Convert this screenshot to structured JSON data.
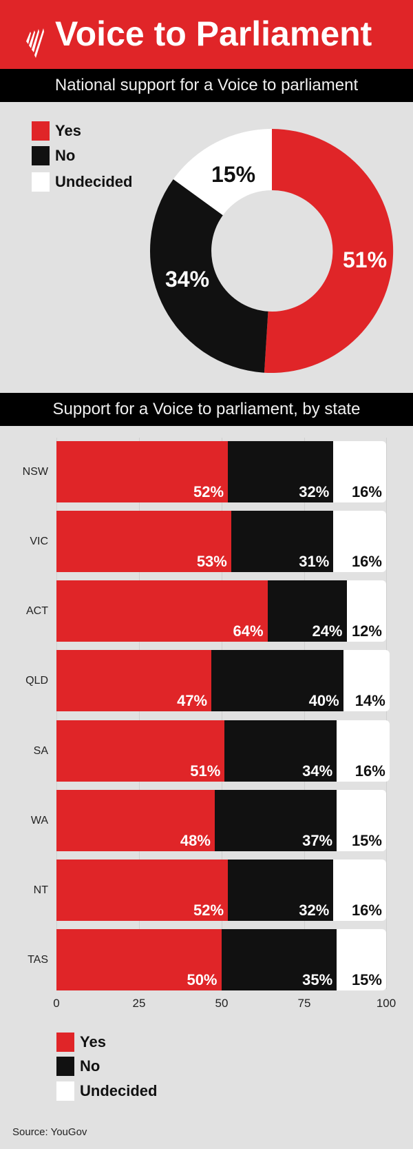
{
  "header": {
    "title": "Voice to Parliament",
    "logo": "sbs-logo-icon"
  },
  "national": {
    "title": "National support for a Voice to parliament",
    "legend": [
      {
        "label": "Yes",
        "color": "#e02528"
      },
      {
        "label": "No",
        "color": "#111111"
      },
      {
        "label": "Undecided",
        "color": "#ffffff"
      }
    ],
    "labels": {
      "yes": "51%",
      "no": "34%",
      "undecided": "15%"
    }
  },
  "by_state": {
    "title": "Support for a Voice to parliament, by state",
    "rows": [
      {
        "state": "NSW",
        "yes": "52%",
        "no": "32%",
        "undecided": "16%"
      },
      {
        "state": "VIC",
        "yes": "53%",
        "no": "31%",
        "undecided": "16%"
      },
      {
        "state": "ACT",
        "yes": "64%",
        "no": "24%",
        "undecided": "12%"
      },
      {
        "state": "QLD",
        "yes": "47%",
        "no": "40%",
        "undecided": "14%"
      },
      {
        "state": "SA",
        "yes": "51%",
        "no": "34%",
        "undecided": "16%"
      },
      {
        "state": "WA",
        "yes": "48%",
        "no": "37%",
        "undecided": "15%"
      },
      {
        "state": "NT",
        "yes": "52%",
        "no": "32%",
        "undecided": "16%"
      },
      {
        "state": "TAS",
        "yes": "50%",
        "no": "35%",
        "undecided": "15%"
      }
    ],
    "axis_ticks": [
      "0",
      "25",
      "50",
      "75",
      "100"
    ],
    "legend": [
      {
        "label": "Yes",
        "color": "#e02528"
      },
      {
        "label": "No",
        "color": "#111111"
      },
      {
        "label": "Undecided",
        "color": "#ffffff"
      }
    ]
  },
  "source": "Source: YouGov",
  "chart_data": [
    {
      "type": "pie",
      "variant": "donut",
      "title": "National support for a Voice to parliament",
      "categories": [
        "Yes",
        "No",
        "Undecided"
      ],
      "values": [
        51,
        34,
        15
      ],
      "colors": [
        "#e02528",
        "#111111",
        "#ffffff"
      ],
      "legend_position": "top-left"
    },
    {
      "type": "bar",
      "orientation": "horizontal",
      "stacked": true,
      "title": "Support for a Voice to parliament, by state",
      "categories": [
        "NSW",
        "VIC",
        "ACT",
        "QLD",
        "SA",
        "WA",
        "NT",
        "TAS"
      ],
      "series": [
        {
          "name": "Yes",
          "color": "#e02528",
          "values": [
            52,
            53,
            64,
            47,
            51,
            48,
            52,
            50
          ]
        },
        {
          "name": "No",
          "color": "#111111",
          "values": [
            32,
            31,
            24,
            40,
            34,
            37,
            32,
            35
          ]
        },
        {
          "name": "Undecided",
          "color": "#ffffff",
          "values": [
            16,
            16,
            12,
            14,
            16,
            15,
            16,
            15
          ]
        }
      ],
      "xlim": [
        0,
        100
      ],
      "xticks": [
        0,
        25,
        50,
        75,
        100
      ],
      "grid": true,
      "legend_position": "bottom-left",
      "source": "YouGov"
    }
  ]
}
